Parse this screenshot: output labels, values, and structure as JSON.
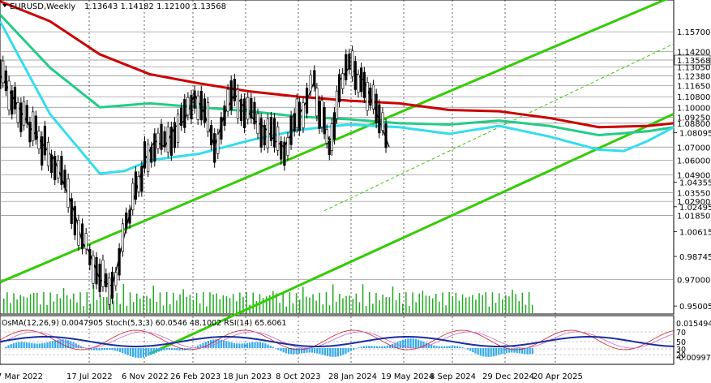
{
  "header": {
    "symbol_timeframe": "EURUSD,Weekly",
    "ohlc": "1.13643 1.14182 1.12100 1.13568"
  },
  "chart_data": {
    "type": "line",
    "title": "EURUSD,Weekly",
    "ylim": [
      0.944,
      1.181
    ],
    "price_levels": [
      "1.15700",
      "1.14200",
      "1.13568",
      "1.13050",
      "1.12380",
      "1.11650",
      "1.10800",
      "1.10000",
      "1.09250",
      "1.08800",
      "1.07000",
      "1.06000",
      "1.04900",
      "1.03550",
      "1.02900",
      "1.01850",
      "0.97000"
    ],
    "axis_ticks": [
      "1.08095",
      "1.04355",
      "1.02495",
      "1.00615",
      "0.98745",
      "0.95005"
    ],
    "highlighted_price": "1.13568",
    "dates": [
      "7 Mar 2022",
      "17 Jul 2022",
      "6 Nov 2022",
      "26 Feb 2023",
      "18 Jun 2023",
      "8 Oct 2023",
      "28 Jan 2024",
      "19 May 2024",
      "8 Sep 2024",
      "29 Dec 2024",
      "20 Apr 2025"
    ],
    "series": [
      {
        "key": "price",
        "color": "#000000",
        "x": [
          0,
          6,
          12,
          18,
          22,
          26,
          30,
          33,
          36,
          40,
          45,
          52,
          58,
          62,
          66,
          70,
          74,
          78,
          82,
          86,
          90,
          94,
          98,
          102,
          106,
          110,
          114,
          118,
          120,
          123,
          126,
          128,
          130,
          132,
          134,
          136,
          140,
          146,
          152,
          156
        ],
        "values": [
          1.125,
          1.105,
          1.085,
          1.07,
          1.06,
          1.04,
          1.02,
          0.998,
          0.99,
          0.97,
          0.965,
          1.02,
          1.06,
          1.075,
          1.07,
          1.085,
          1.09,
          1.11,
          1.095,
          1.07,
          1.095,
          1.11,
          1.1,
          1.09,
          1.085,
          1.075,
          1.07,
          1.085,
          1.095,
          1.105,
          1.12,
          1.098,
          1.085,
          1.075,
          1.08,
          1.12,
          1.13,
          1.12,
          1.09,
          1.07
        ]
      },
      {
        "key": "ema_red",
        "color": "#cc0000",
        "x": [
          0,
          20,
          40,
          60,
          80,
          100,
          120,
          140,
          160,
          180,
          200,
          220,
          240,
          260,
          270
        ],
        "values": [
          1.18,
          1.165,
          1.14,
          1.125,
          1.118,
          1.112,
          1.108,
          1.105,
          1.103,
          1.098,
          1.097,
          1.092,
          1.085,
          1.086,
          1.088
        ]
      },
      {
        "key": "ema_green",
        "color": "#22cc88",
        "x": [
          0,
          20,
          40,
          60,
          80,
          100,
          120,
          140,
          160,
          180,
          200,
          220,
          240,
          260,
          270
        ],
        "values": [
          1.17,
          1.13,
          1.1,
          1.103,
          1.1,
          1.097,
          1.093,
          1.091,
          1.088,
          1.087,
          1.09,
          1.086,
          1.079,
          1.082,
          1.085
        ]
      },
      {
        "key": "ema_cyan",
        "color": "#33ddee",
        "x": [
          0,
          20,
          40,
          50,
          60,
          80,
          100,
          120,
          140,
          160,
          180,
          200,
          220,
          240,
          250,
          260,
          270
        ],
        "values": [
          1.165,
          1.095,
          1.05,
          1.052,
          1.06,
          1.065,
          1.075,
          1.083,
          1.087,
          1.085,
          1.08,
          1.086,
          1.078,
          1.068,
          1.067,
          1.075,
          1.085
        ]
      }
    ],
    "channel_lines": [
      {
        "color": "#33cc00",
        "x": [
          0,
          270
        ],
        "values": [
          0.968,
          1.184
        ]
      },
      {
        "color": "#33cc00",
        "x": [
          60,
          270
        ],
        "values": [
          0.914,
          1.095
        ]
      },
      {
        "color": "#33cc00",
        "x": [
          130,
          270
        ],
        "values": [
          1.022,
          1.148
        ],
        "dashed": true
      }
    ],
    "indicators": {
      "label": "OsMA(12,26,9) 0.0047905  Stoch(5,3,3) 60.0546 48.1002  RSI(14) 65.6061",
      "scale_top": "0.015494",
      "scale_bottom": "-0.009979",
      "levels": [
        "70",
        "50",
        "30",
        "20"
      ]
    }
  }
}
